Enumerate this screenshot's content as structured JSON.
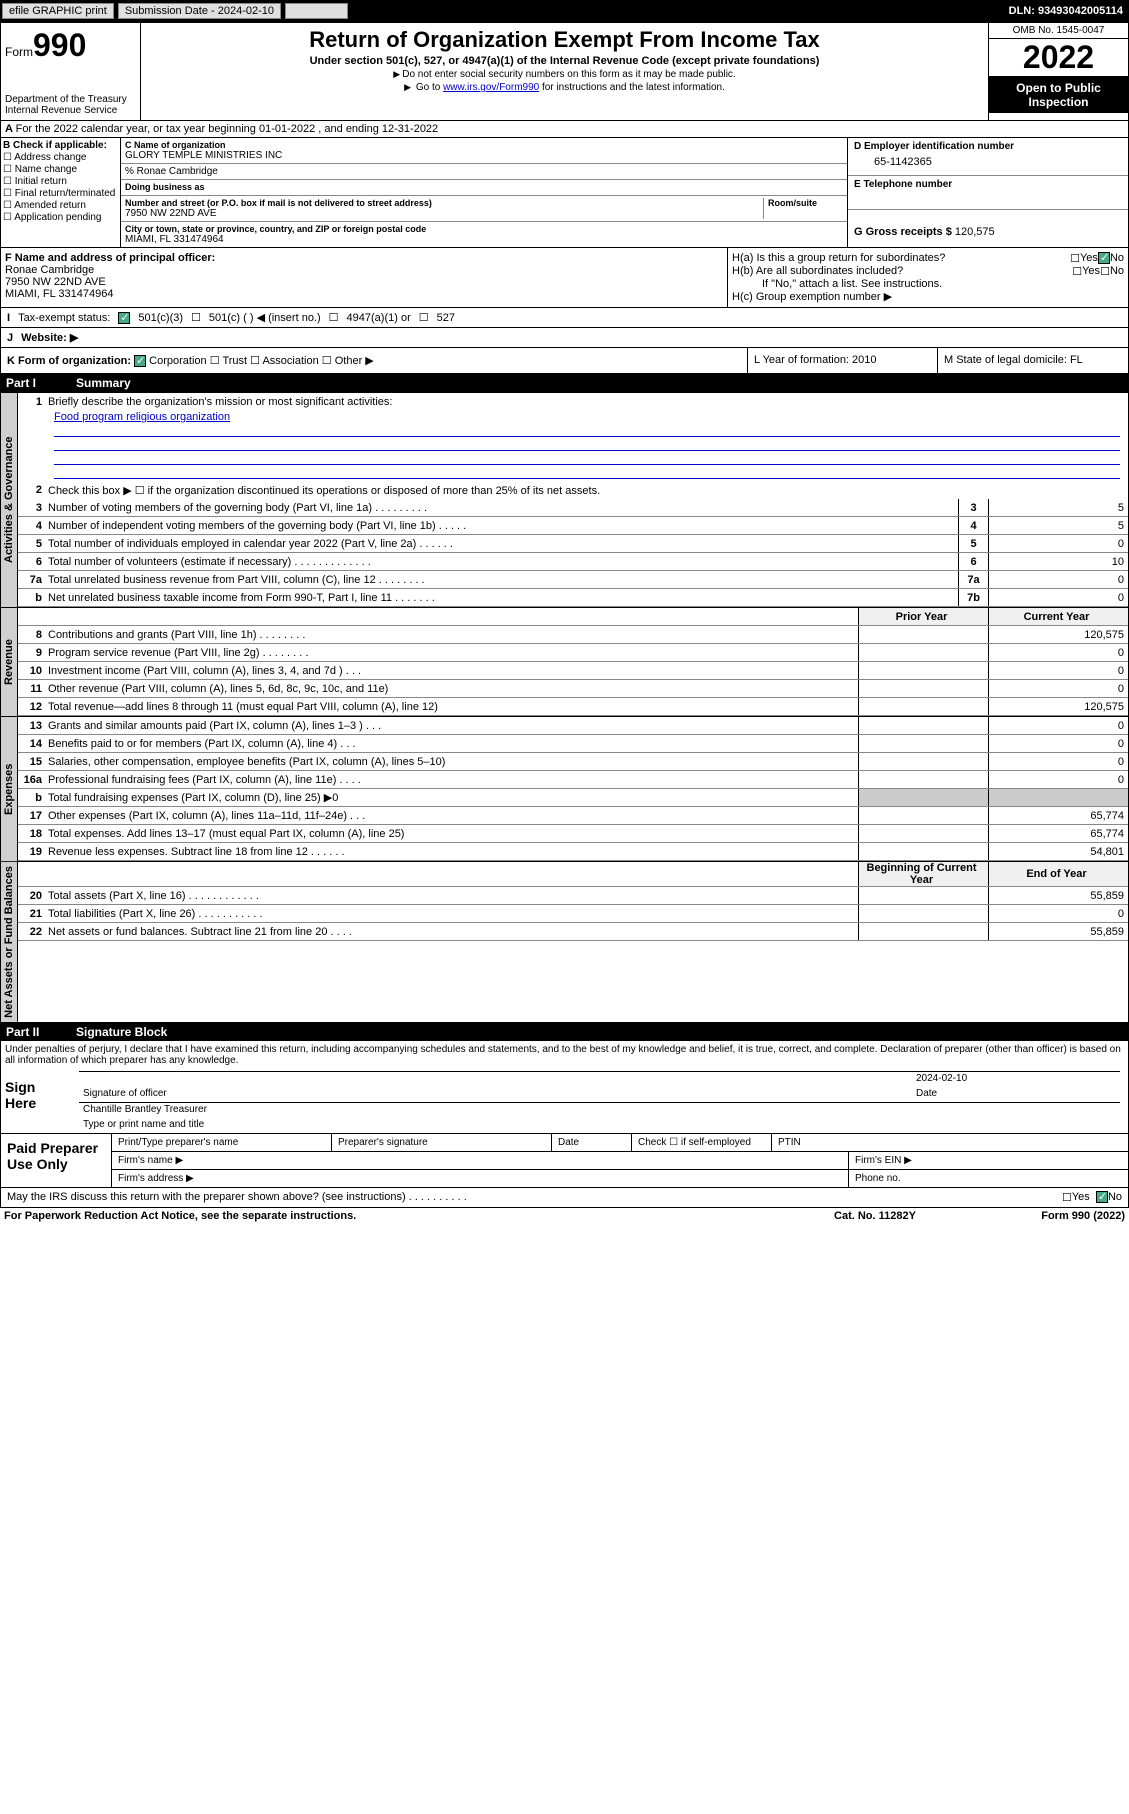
{
  "topbar": {
    "efile": "efile GRAPHIC print",
    "submission": "Submission Date - 2024-02-10",
    "dln": "DLN: 93493042005114"
  },
  "header": {
    "form_label": "Form",
    "form_num": "990",
    "title": "Return of Organization Exempt From Income Tax",
    "subtitle": "Under section 501(c), 527, or 4947(a)(1) of the Internal Revenue Code (except private foundations)",
    "note1": "Do not enter social security numbers on this form as it may be made public.",
    "note2_pre": "Go to ",
    "note2_link": "www.irs.gov/Form990",
    "note2_post": " for instructions and the latest information.",
    "dept": "Department of the Treasury",
    "irs": "Internal Revenue Service",
    "omb": "OMB No. 1545-0047",
    "year": "2022",
    "open": "Open to Public Inspection"
  },
  "rowA": "For the 2022 calendar year, or tax year beginning 01-01-2022   , and ending 12-31-2022",
  "boxB": {
    "title": "B Check if applicable:",
    "items": [
      "Address change",
      "Name change",
      "Initial return",
      "Final return/terminated",
      "Amended return",
      "Application pending"
    ]
  },
  "boxC": {
    "name_label": "C Name of organization",
    "name": "GLORY TEMPLE MINISTRIES INC",
    "care_of": "% Ronae Cambridge",
    "dba_label": "Doing business as",
    "street_label": "Number and street (or P.O. box if mail is not delivered to street address)",
    "room_label": "Room/suite",
    "street": "7950 NW 22ND AVE",
    "city_label": "City or town, state or province, country, and ZIP or foreign postal code",
    "city": "MIAMI, FL  331474964"
  },
  "boxD": {
    "label": "D Employer identification number",
    "value": "65-1142365"
  },
  "boxE": {
    "label": "E Telephone number",
    "value": ""
  },
  "boxG": {
    "label": "G Gross receipts $",
    "value": "120,575"
  },
  "boxF": {
    "label": "F Name and address of principal officer:",
    "name": "Ronae Cambridge",
    "street": "7950 NW 22ND AVE",
    "city": "MIAMI, FL  331474964"
  },
  "boxH": {
    "ha": "H(a)  Is this a group return for subordinates?",
    "hb": "H(b)  Are all subordinates included?",
    "hb_note": "If \"No,\" attach a list. See instructions.",
    "hc": "H(c)  Group exemption number ▶"
  },
  "boxI": {
    "label": "Tax-exempt status:",
    "opts": [
      "501(c)(3)",
      "501(c) (  ) ◀ (insert no.)",
      "4947(a)(1) or",
      "527"
    ]
  },
  "boxJ": "Website: ▶",
  "boxK": {
    "label": "K Form of organization:",
    "opts": [
      "Corporation",
      "Trust",
      "Association",
      "Other ▶"
    ]
  },
  "boxL": "L Year of formation: 2010",
  "boxM": "M State of legal domicile: FL",
  "part1": {
    "num": "Part I",
    "title": "Summary"
  },
  "mission": {
    "q": "Briefly describe the organization's mission or most significant activities:",
    "a": "Food program religious organization"
  },
  "line2": "Check this box ▶ ☐  if the organization discontinued its operations or disposed of more than 25% of its net assets.",
  "lines": [
    {
      "n": "3",
      "d": "Number of voting members of the governing body (Part VI, line 1a)   .    .    .    .    .    .    .    .    .",
      "b": "3",
      "v": "5"
    },
    {
      "n": "4",
      "d": "Number of independent voting members of the governing body (Part VI, line 1b)   .    .    .    .    .",
      "b": "4",
      "v": "5"
    },
    {
      "n": "5",
      "d": "Total number of individuals employed in calendar year 2022 (Part V, line 2a)   .    .    .    .    .    .",
      "b": "5",
      "v": "0"
    },
    {
      "n": "6",
      "d": "Total number of volunteers (estimate if necessary)   .    .    .    .    .    .    .    .    .    .    .    .    .",
      "b": "6",
      "v": "10"
    },
    {
      "n": "7a",
      "d": "Total unrelated business revenue from Part VIII, column (C), line 12   .    .    .    .    .    .    .    .",
      "b": "7a",
      "v": "0"
    },
    {
      "n": "b",
      "d": "Net unrelated business taxable income from Form 990-T, Part I, line 11   .    .    .    .    .    .    .",
      "b": "7b",
      "v": "0"
    }
  ],
  "twocol_hdr": {
    "prior": "Prior Year",
    "current": "Current Year"
  },
  "revenue": [
    {
      "n": "8",
      "d": "Contributions and grants (Part VIII, line 1h)   .    .    .    .    .    .    .    .",
      "p": "",
      "c": "120,575"
    },
    {
      "n": "9",
      "d": "Program service revenue (Part VIII, line 2g)   .    .    .    .    .    .    .    .",
      "p": "",
      "c": "0"
    },
    {
      "n": "10",
      "d": "Investment income (Part VIII, column (A), lines 3, 4, and 7d )   .    .    .",
      "p": "",
      "c": "0"
    },
    {
      "n": "11",
      "d": "Other revenue (Part VIII, column (A), lines 5, 6d, 8c, 9c, 10c, and 11e)",
      "p": "",
      "c": "0"
    },
    {
      "n": "12",
      "d": "Total revenue—add lines 8 through 11 (must equal Part VIII, column (A), line 12)",
      "p": "",
      "c": "120,575"
    }
  ],
  "expenses": [
    {
      "n": "13",
      "d": "Grants and similar amounts paid (Part IX, column (A), lines 1–3 )   .    .    .",
      "p": "",
      "c": "0"
    },
    {
      "n": "14",
      "d": "Benefits paid to or for members (Part IX, column (A), line 4)   .    .    .",
      "p": "",
      "c": "0"
    },
    {
      "n": "15",
      "d": "Salaries, other compensation, employee benefits (Part IX, column (A), lines 5–10)",
      "p": "",
      "c": "0"
    },
    {
      "n": "16a",
      "d": "Professional fundraising fees (Part IX, column (A), line 11e)   .    .    .    .",
      "p": "",
      "c": "0"
    },
    {
      "n": "b",
      "d": "Total fundraising expenses (Part IX, column (D), line 25) ▶0",
      "p": "—",
      "c": "—"
    },
    {
      "n": "17",
      "d": "Other expenses (Part IX, column (A), lines 11a–11d, 11f–24e)   .    .    .",
      "p": "",
      "c": "65,774"
    },
    {
      "n": "18",
      "d": "Total expenses. Add lines 13–17 (must equal Part IX, column (A), line 25)",
      "p": "",
      "c": "65,774"
    },
    {
      "n": "19",
      "d": "Revenue less expenses. Subtract line 18 from line 12   .    .    .    .    .    .",
      "p": "",
      "c": "54,801"
    }
  ],
  "netassets_hdr": {
    "begin": "Beginning of Current Year",
    "end": "End of Year"
  },
  "netassets": [
    {
      "n": "20",
      "d": "Total assets (Part X, line 16)   .    .    .    .    .    .    .    .    .    .    .    .",
      "p": "",
      "c": "55,859"
    },
    {
      "n": "21",
      "d": "Total liabilities (Part X, line 26)   .    .    .    .    .    .    .    .    .    .    .",
      "p": "",
      "c": "0"
    },
    {
      "n": "22",
      "d": "Net assets or fund balances. Subtract line 21 from line 20   .    .    .    .",
      "p": "",
      "c": "55,859"
    }
  ],
  "vtabs": {
    "ag": "Activities & Governance",
    "rev": "Revenue",
    "exp": "Expenses",
    "na": "Net Assets or Fund Balances"
  },
  "part2": {
    "num": "Part II",
    "title": "Signature Block"
  },
  "sig": {
    "decl": "Under penalties of perjury, I declare that I have examined this return, including accompanying schedules and statements, and to the best of my knowledge and belief, it is true, correct, and complete. Declaration of preparer (other than officer) is based on all information of which preparer has any knowledge.",
    "sign_here": "Sign Here",
    "sig_officer": "Signature of officer",
    "date": "Date",
    "date_val": "2024-02-10",
    "name_title": "Chantille Brantley  Treasurer",
    "type_name": "Type or print name and title",
    "paid": "Paid Preparer Use Only",
    "prep_name": "Print/Type preparer's name",
    "prep_sig": "Preparer's signature",
    "prep_date": "Date",
    "check_self": "Check ☐ if self-employed",
    "ptin": "PTIN",
    "firm_name": "Firm's name  ▶",
    "firm_ein": "Firm's EIN ▶",
    "firm_addr": "Firm's address ▶",
    "phone": "Phone no."
  },
  "discuss": "May the IRS discuss this return with the preparer shown above? (see instructions)   .    .    .    .    .    .    .    .    .    .",
  "footer": {
    "pra": "For Paperwork Reduction Act Notice, see the separate instructions.",
    "cat": "Cat. No. 11282Y",
    "form": "Form 990 (2022)"
  },
  "yes": "Yes",
  "no": "No"
}
